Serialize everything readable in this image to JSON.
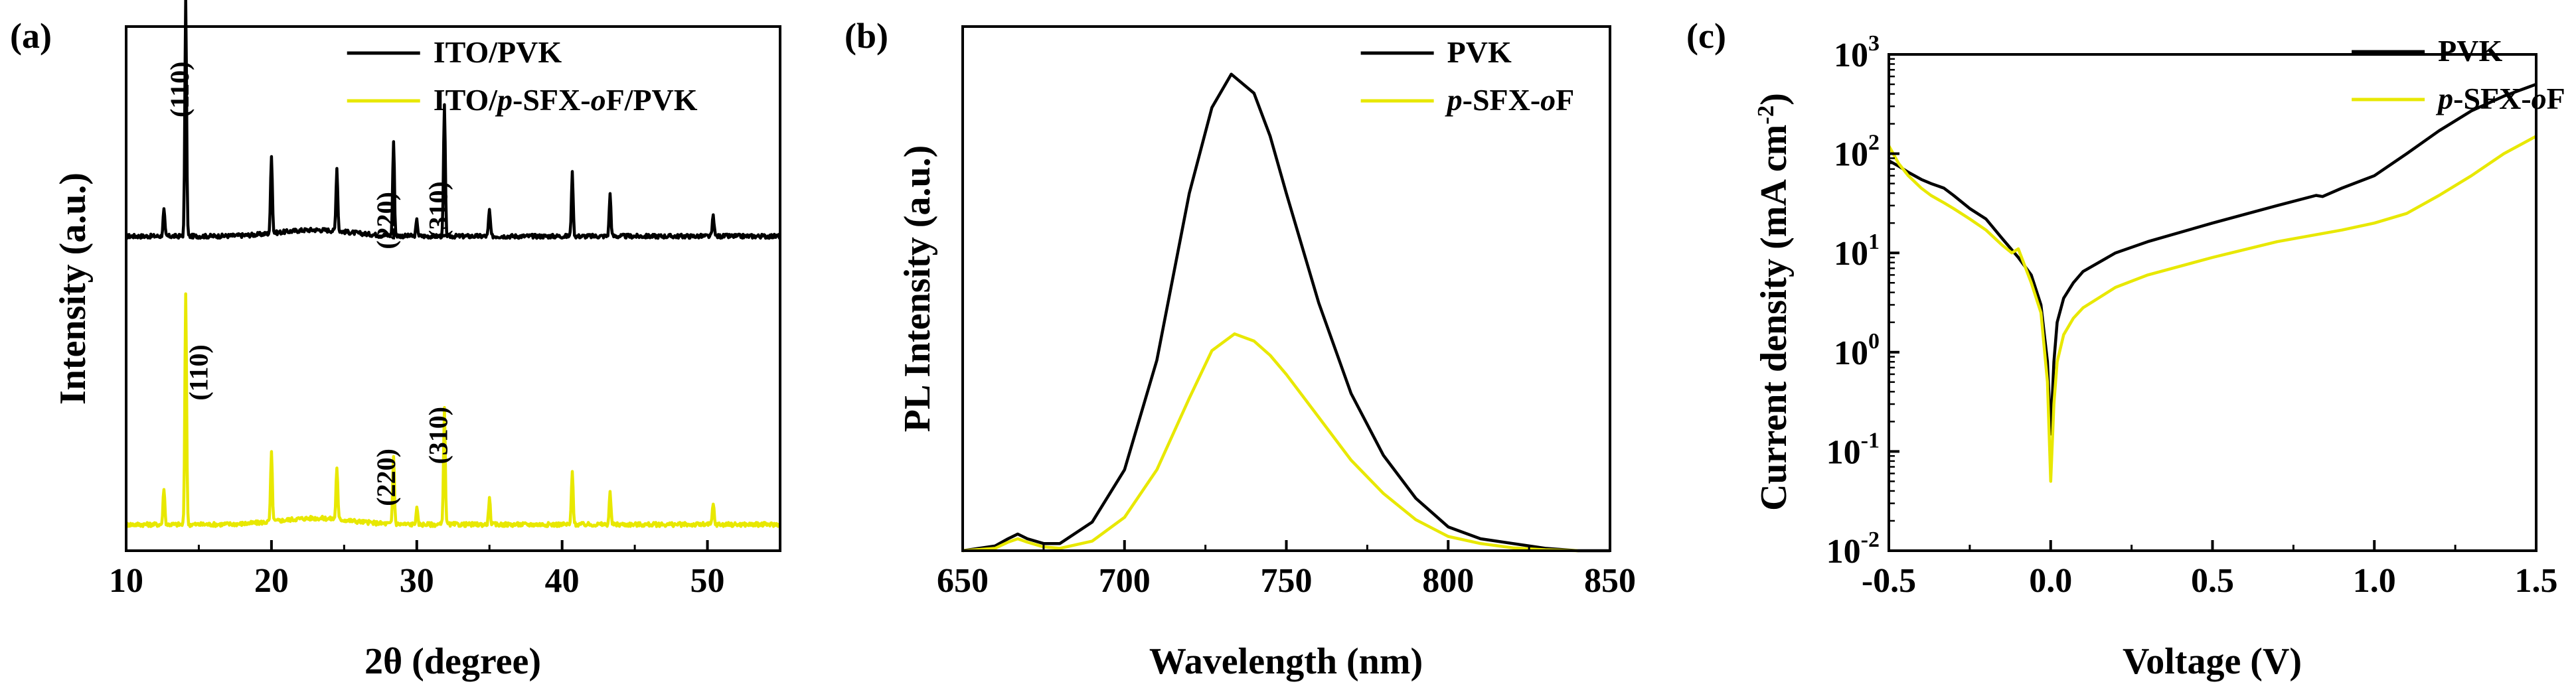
{
  "figure_caption": "",
  "colors": {
    "black": "#000000",
    "yellow": "#E8E800",
    "axis": "#000000"
  },
  "chart_data": [
    {
      "id": "a",
      "panel_label": "(a)",
      "type": "line",
      "xlabel": "2θ (degree)",
      "ylabel": "Intensity (a.u.)",
      "xlim": [
        10,
        55
      ],
      "xticks": [
        10,
        20,
        30,
        40,
        50
      ],
      "xtick_labels": [
        "10",
        "20",
        "30",
        "40",
        "50"
      ],
      "ylim": [
        0,
        1
      ],
      "yticks": [],
      "legend": {
        "position": "top-right",
        "entries": [
          "ITO/PVK",
          "ITO/p-SFX-oF/PVK"
        ]
      },
      "legend_rich": [
        [
          {
            "t": "ITO/PVK"
          }
        ],
        [
          {
            "t": "ITO/"
          },
          {
            "t": "p",
            "i": true
          },
          {
            "t": "-SFX-"
          },
          {
            "t": "o",
            "i": true
          },
          {
            "t": "F/PVK"
          }
        ]
      ],
      "series": [
        {
          "name": "ITO/PVK",
          "color": "#000000",
          "baseline": 0.6,
          "noise": 0.004,
          "bump": 0.012,
          "peaks": [
            {
              "x": 12.6,
              "h": 0.05
            },
            {
              "x": 14.1,
              "h": 0.45
            },
            {
              "x": 20.0,
              "h": 0.15
            },
            {
              "x": 24.5,
              "h": 0.12
            },
            {
              "x": 28.4,
              "h": 0.18
            },
            {
              "x": 30.0,
              "h": 0.03
            },
            {
              "x": 31.9,
              "h": 0.25
            },
            {
              "x": 35.0,
              "h": 0.05
            },
            {
              "x": 40.7,
              "h": 0.12
            },
            {
              "x": 43.3,
              "h": 0.08
            },
            {
              "x": 50.4,
              "h": 0.04
            }
          ]
        },
        {
          "name": "ITO/p-SFX-oF/PVK",
          "color": "#E8E800",
          "baseline": 0.05,
          "noise": 0.004,
          "bump": 0.012,
          "peaks": [
            {
              "x": 12.6,
              "h": 0.07
            },
            {
              "x": 14.1,
              "h": 0.44
            },
            {
              "x": 20.0,
              "h": 0.13
            },
            {
              "x": 24.5,
              "h": 0.1
            },
            {
              "x": 28.4,
              "h": 0.13
            },
            {
              "x": 30.0,
              "h": 0.03
            },
            {
              "x": 31.9,
              "h": 0.22
            },
            {
              "x": 35.0,
              "h": 0.05
            },
            {
              "x": 40.7,
              "h": 0.1
            },
            {
              "x": 43.3,
              "h": 0.06
            },
            {
              "x": 50.4,
              "h": 0.04
            }
          ]
        }
      ],
      "annotations": [
        {
          "text": "(110)",
          "x": 14.3,
          "y": 0.88,
          "rotate": -90
        },
        {
          "text": "(220)",
          "x": 28.5,
          "y": 0.63,
          "rotate": -90
        },
        {
          "text": "(310)",
          "x": 32.1,
          "y": 0.65,
          "rotate": -90
        },
        {
          "text": "(110)",
          "x": 15.6,
          "y": 0.34,
          "rotate": -90
        },
        {
          "text": "(220)",
          "x": 28.5,
          "y": 0.14,
          "rotate": -90
        },
        {
          "text": "(310)",
          "x": 32.1,
          "y": 0.22,
          "rotate": -90
        }
      ]
    },
    {
      "id": "b",
      "panel_label": "(b)",
      "type": "line",
      "xlabel": "Wavelength (nm)",
      "ylabel": "PL Intensity (a.u.)",
      "xlim": [
        650,
        850
      ],
      "xticks": [
        650,
        700,
        750,
        800,
        850
      ],
      "xtick_labels": [
        "650",
        "700",
        "750",
        "800",
        "850"
      ],
      "ylim": [
        0,
        1.1
      ],
      "yticks": [],
      "legend": {
        "position": "top-right",
        "entries": [
          "PVK",
          "p-SFX-oF"
        ]
      },
      "legend_rich": [
        [
          {
            "t": "PVK"
          }
        ],
        [
          {
            "t": "p",
            "i": true
          },
          {
            "t": "-SFX-"
          },
          {
            "t": "o",
            "i": true
          },
          {
            "t": "F"
          }
        ]
      ],
      "series": [
        {
          "name": "PVK",
          "color": "#000000",
          "x": [
            650,
            660,
            664,
            667,
            670,
            675,
            680,
            690,
            700,
            710,
            720,
            727,
            733,
            740,
            745,
            750,
            760,
            770,
            780,
            790,
            800,
            810,
            820,
            830,
            840,
            850
          ],
          "values": [
            0.0,
            0.01,
            0.025,
            0.035,
            0.025,
            0.015,
            0.015,
            0.06,
            0.17,
            0.4,
            0.75,
            0.93,
            1.0,
            0.96,
            0.87,
            0.75,
            0.52,
            0.33,
            0.2,
            0.11,
            0.05,
            0.025,
            0.015,
            0.005,
            0.0,
            0.0
          ]
        },
        {
          "name": "p-SFX-oF",
          "color": "#E8E800",
          "x": [
            650,
            660,
            664,
            667,
            670,
            675,
            680,
            690,
            700,
            710,
            720,
            727,
            734,
            740,
            745,
            750,
            760,
            770,
            780,
            790,
            800,
            810,
            820,
            830,
            840
          ],
          "values": [
            0.0,
            0.005,
            0.018,
            0.025,
            0.018,
            0.008,
            0.005,
            0.02,
            0.07,
            0.17,
            0.32,
            0.42,
            0.455,
            0.44,
            0.41,
            0.37,
            0.28,
            0.19,
            0.12,
            0.065,
            0.03,
            0.015,
            0.006,
            0.002,
            0.0
          ]
        }
      ],
      "annotations": []
    },
    {
      "id": "c",
      "panel_label": "(c)",
      "type": "line",
      "xlabel": "Voltage (V)",
      "ylabel": "Current density (mA cm-2)",
      "ylabel_rich": [
        {
          "t": "Current density (mA cm"
        },
        {
          "t": "-2",
          "sup": true
        },
        {
          "t": ")"
        }
      ],
      "xlim": [
        -0.5,
        1.5
      ],
      "xticks": [
        -0.5,
        0.0,
        0.5,
        1.0,
        1.5
      ],
      "xtick_labels": [
        "-0.5",
        "0.0",
        "0.5",
        "1.0",
        "1.5"
      ],
      "yscale": "log",
      "ylim": [
        0.01,
        1000
      ],
      "yticks": [
        0.01,
        0.1,
        1,
        10,
        100,
        1000
      ],
      "ytick_labels": [
        [
          "10",
          "-2"
        ],
        [
          "10",
          "-1"
        ],
        [
          "10",
          "0"
        ],
        [
          "10",
          "1"
        ],
        [
          "10",
          "2"
        ],
        [
          "10",
          "3"
        ]
      ],
      "legend": {
        "position": "top-right",
        "entries": [
          "PVK",
          "p-SFX-oF"
        ]
      },
      "legend_rich": [
        [
          {
            "t": "PVK"
          }
        ],
        [
          {
            "t": "p",
            "i": true
          },
          {
            "t": "-SFX-"
          },
          {
            "t": "o",
            "i": true
          },
          {
            "t": "F"
          }
        ]
      ],
      "series": [
        {
          "name": "PVK",
          "color": "#000000",
          "x": [
            -0.5,
            -0.47,
            -0.44,
            -0.4,
            -0.37,
            -0.33,
            -0.3,
            -0.25,
            -0.2,
            -0.15,
            -0.1,
            -0.06,
            -0.03,
            -0.01,
            0.0,
            0.01,
            0.02,
            0.04,
            0.07,
            0.1,
            0.2,
            0.3,
            0.5,
            0.7,
            0.82,
            0.84,
            0.9,
            1.0,
            1.1,
            1.2,
            1.3,
            1.4,
            1.5
          ],
          "values": [
            85,
            75,
            65,
            55,
            50,
            45,
            38,
            28,
            22,
            14,
            9,
            6,
            3,
            0.8,
            0.15,
            0.8,
            2.0,
            3.5,
            5.0,
            6.5,
            10,
            13,
            20,
            30,
            38,
            37,
            45,
            60,
            100,
            170,
            270,
            380,
            500
          ]
        },
        {
          "name": "p-SFX-oF",
          "color": "#E8E800",
          "x": [
            -0.5,
            -0.47,
            -0.44,
            -0.4,
            -0.37,
            -0.33,
            -0.3,
            -0.25,
            -0.2,
            -0.15,
            -0.12,
            -0.1,
            -0.06,
            -0.03,
            -0.01,
            0.0,
            0.01,
            0.02,
            0.04,
            0.07,
            0.1,
            0.2,
            0.3,
            0.5,
            0.7,
            0.9,
            1.0,
            1.1,
            1.2,
            1.3,
            1.4,
            1.5
          ],
          "values": [
            120,
            80,
            60,
            45,
            38,
            32,
            28,
            22,
            17,
            12,
            10,
            11,
            5,
            2.5,
            0.5,
            0.05,
            0.3,
            0.8,
            1.5,
            2.2,
            2.8,
            4.5,
            6,
            9,
            13,
            17,
            20,
            25,
            38,
            60,
            100,
            150
          ]
        }
      ],
      "annotations": []
    }
  ]
}
